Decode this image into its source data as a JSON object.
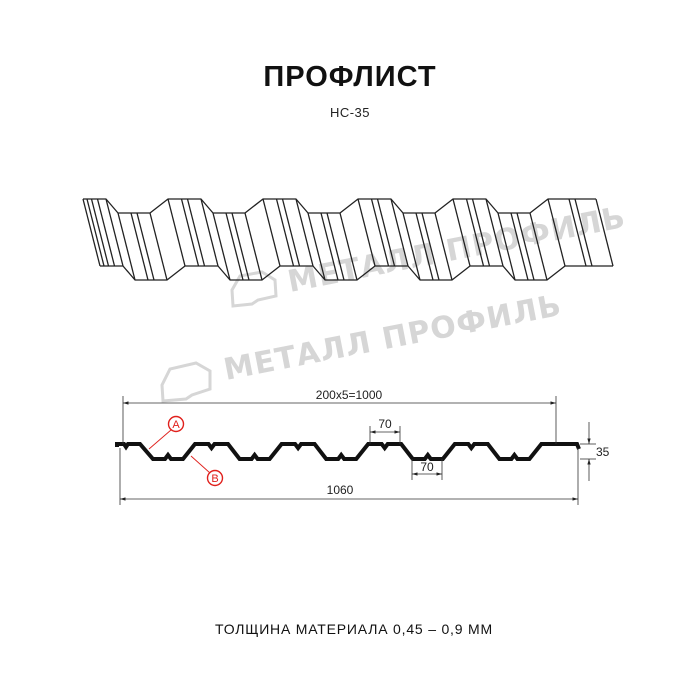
{
  "header": {
    "title": "ПРОФЛИСТ",
    "subtitle": "НС-35"
  },
  "watermark": {
    "logo_text": "МЕТАЛЛ ПРОФИЛЬ"
  },
  "dimensions": {
    "pitch_total": "200x5=1000",
    "top_width": "70",
    "bottom_width": "70",
    "height": "35",
    "total_width": "1060"
  },
  "callouts": {
    "a": "A",
    "b": "B"
  },
  "footer": {
    "thickness": "ТОЛЩИНА МАТЕРИАЛА 0,45 – 0,9 ММ"
  },
  "colors": {
    "line": "#111111",
    "callout": "#e0201c",
    "watermark": "#d6d6d6"
  }
}
